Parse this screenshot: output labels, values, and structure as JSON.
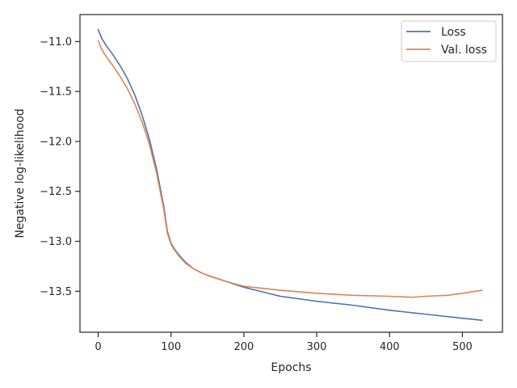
{
  "chart_data": {
    "type": "line",
    "title": "",
    "xlabel": "Epochs",
    "ylabel": "Negative log-likelihood",
    "xlim": [
      -25,
      555
    ],
    "ylim": [
      -13.91,
      -10.73
    ],
    "x_ticks": [
      0,
      100,
      200,
      300,
      400,
      500
    ],
    "x_tick_labels": [
      "0",
      "100",
      "200",
      "300",
      "400",
      "500"
    ],
    "y_ticks": [
      -11.0,
      -11.5,
      -12.0,
      -12.5,
      -13.0,
      -13.5
    ],
    "y_tick_labels": [
      "−11.0",
      "−11.5",
      "−12.0",
      "−12.5",
      "−13.0",
      "−13.5"
    ],
    "grid": false,
    "legend_position": "top-right",
    "series": [
      {
        "name": "Loss",
        "color": "#4c72b0",
        "x": [
          0,
          5,
          10,
          20,
          30,
          40,
          50,
          60,
          70,
          80,
          90,
          95,
          100,
          105,
          110,
          115,
          120,
          130,
          140,
          150,
          175,
          200,
          250,
          300,
          350,
          400,
          450,
          500,
          527
        ],
        "y": [
          -10.88,
          -10.97,
          -11.03,
          -11.13,
          -11.24,
          -11.37,
          -11.53,
          -11.73,
          -11.97,
          -12.27,
          -12.65,
          -12.9,
          -13.02,
          -13.08,
          -13.13,
          -13.17,
          -13.21,
          -13.27,
          -13.31,
          -13.34,
          -13.4,
          -13.46,
          -13.55,
          -13.6,
          -13.64,
          -13.69,
          -13.73,
          -13.77,
          -13.79
        ]
      },
      {
        "name": "Val. loss",
        "color": "#dd8452",
        "x": [
          0,
          5,
          10,
          20,
          30,
          40,
          50,
          60,
          70,
          80,
          90,
          95,
          100,
          105,
          110,
          115,
          120,
          130,
          140,
          150,
          175,
          200,
          250,
          300,
          350,
          400,
          430,
          450,
          480,
          500,
          527
        ],
        "y": [
          -10.99,
          -11.08,
          -11.14,
          -11.24,
          -11.35,
          -11.47,
          -11.62,
          -11.8,
          -12.02,
          -12.31,
          -12.68,
          -12.92,
          -13.03,
          -13.09,
          -13.14,
          -13.18,
          -13.22,
          -13.27,
          -13.31,
          -13.34,
          -13.4,
          -13.45,
          -13.49,
          -13.52,
          -13.54,
          -13.55,
          -13.56,
          -13.55,
          -13.54,
          -13.52,
          -13.49
        ]
      }
    ]
  }
}
